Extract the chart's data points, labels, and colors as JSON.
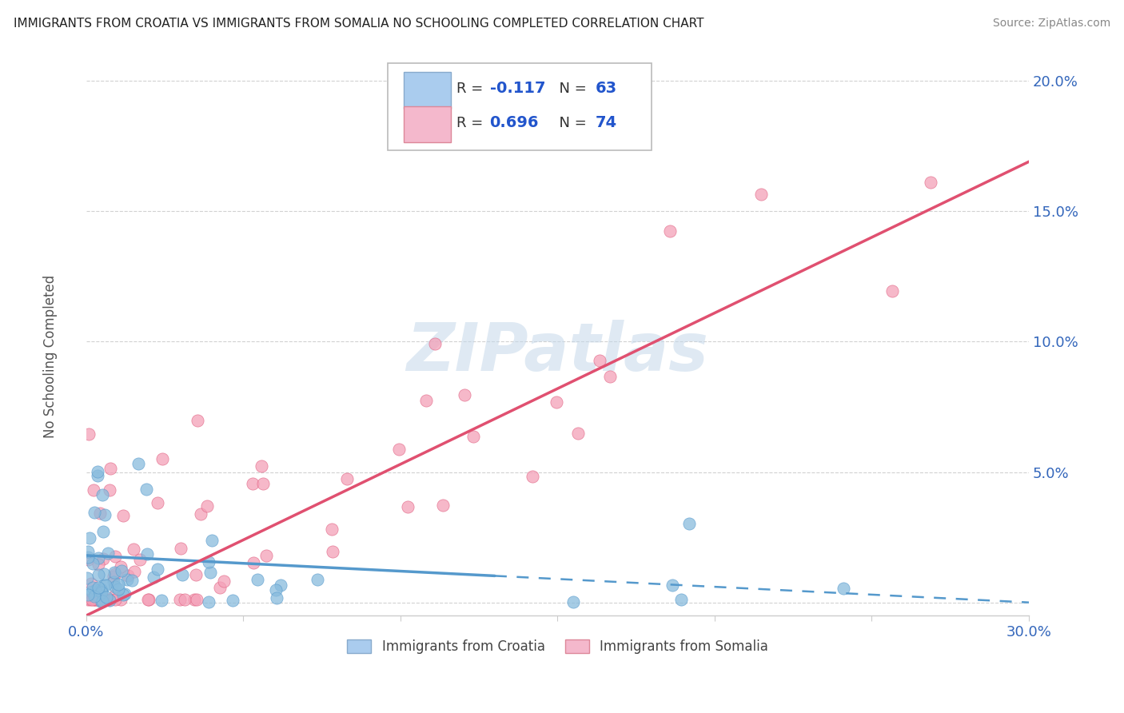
{
  "title": "IMMIGRANTS FROM CROATIA VS IMMIGRANTS FROM SOMALIA NO SCHOOLING COMPLETED CORRELATION CHART",
  "source": "Source: ZipAtlas.com",
  "ylabel": "No Schooling Completed",
  "xlim": [
    0.0,
    0.3
  ],
  "ylim": [
    -0.005,
    0.21
  ],
  "croatia_color": "#88bbdd",
  "somalia_color": "#f4a0b8",
  "croatia_edge_color": "#5599cc",
  "somalia_edge_color": "#e06080",
  "croatia_line_color": "#5599cc",
  "somalia_line_color": "#e05070",
  "legend_croatia_color": "#aaccee",
  "legend_somalia_color": "#f4b8cc",
  "watermark": "ZIPatlas",
  "background_color": "#ffffff",
  "grid_color": "#cccccc",
  "title_color": "#222222",
  "source_color": "#888888",
  "axis_label_color": "#3366bb",
  "ylabel_color": "#555555"
}
